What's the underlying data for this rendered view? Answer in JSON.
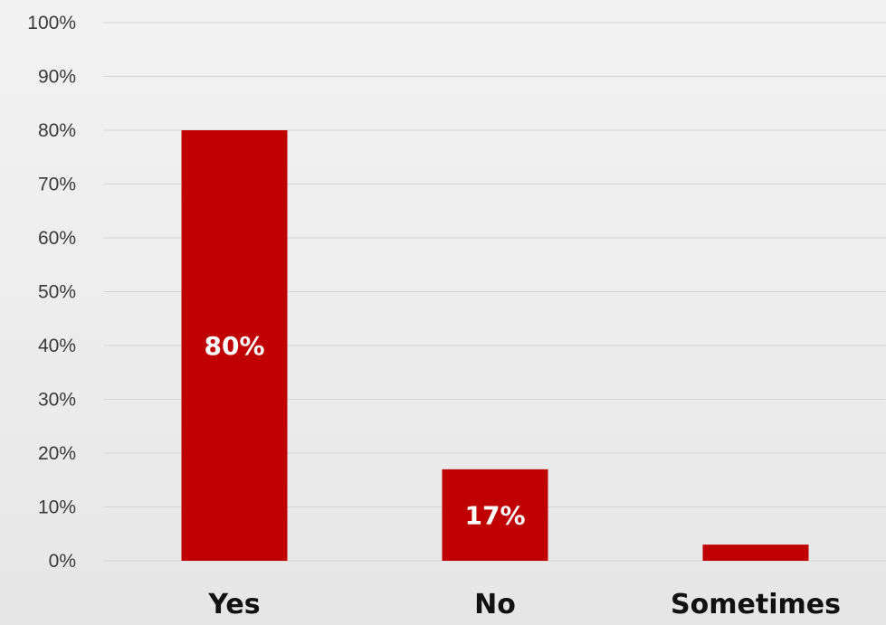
{
  "chart_data": {
    "type": "bar",
    "categories": [
      "Yes",
      "No",
      "Sometimes"
    ],
    "values": [
      80,
      17,
      3
    ],
    "data_labels": [
      "80%",
      "17%",
      ""
    ],
    "ylim": [
      0,
      100
    ],
    "y_ticks": [
      "0%",
      "10%",
      "20%",
      "30%",
      "40%",
      "50%",
      "60%",
      "70%",
      "80%",
      "90%",
      "100%"
    ],
    "title": "",
    "xlabel": "",
    "ylabel": "",
    "grid": true,
    "legend": "none",
    "bar_color": "#c00000"
  }
}
